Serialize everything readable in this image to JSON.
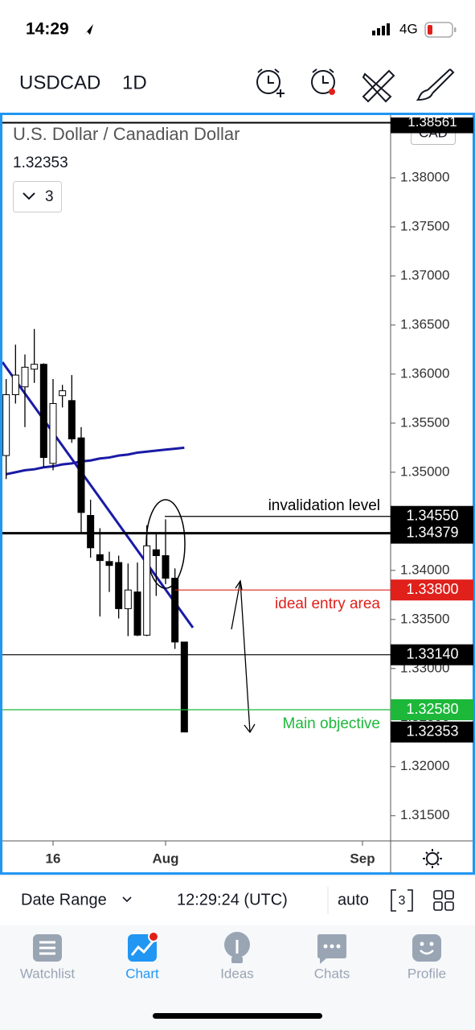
{
  "status_bar": {
    "time": "14:29",
    "network": "4G"
  },
  "header": {
    "symbol": "USDCAD",
    "interval": "1D"
  },
  "chart_data": {
    "type": "candlestick",
    "title": "U.S. Dollar / Canadian Dollar",
    "last_price": {
      "value": 1.32353,
      "label": "1.32353"
    },
    "indicators_count": 3,
    "currency": "CAD",
    "x": [
      0,
      1,
      2,
      3,
      4,
      5,
      6,
      7,
      8,
      9,
      10,
      11,
      12,
      13,
      14,
      15,
      16,
      17,
      18,
      19
    ],
    "open": [
      1.3517,
      1.3579,
      1.3587,
      1.3605,
      1.361,
      1.3509,
      1.3578,
      1.3573,
      1.3535,
      1.3456,
      1.3416,
      1.3409,
      1.3408,
      1.3361,
      1.3378,
      1.3334,
      1.3421,
      1.3415,
      1.3392,
      1.3327
    ],
    "high": [
      1.3595,
      1.363,
      1.362,
      1.3646,
      1.3611,
      1.3595,
      1.3589,
      1.3599,
      1.3546,
      1.3472,
      1.3443,
      1.3419,
      1.3415,
      1.3407,
      1.3408,
      1.3446,
      1.3439,
      1.3452,
      1.3402,
      1.3327
    ],
    "low": [
      1.3493,
      1.357,
      1.3546,
      1.3591,
      1.3505,
      1.3502,
      1.3566,
      1.353,
      1.3439,
      1.3413,
      1.3353,
      1.3378,
      1.3351,
      1.3333,
      1.3333,
      1.3333,
      1.3374,
      1.3386,
      1.332,
      1.32353
    ],
    "close": [
      1.3579,
      1.3599,
      1.3607,
      1.361,
      1.3515,
      1.357,
      1.3583,
      1.3534,
      1.3459,
      1.3423,
      1.341,
      1.3405,
      1.3361,
      1.338,
      1.3334,
      1.3425,
      1.3415,
      1.3392,
      1.3327,
      1.32353
    ],
    "up_color": "#ffffff",
    "down_color": "#000000",
    "moving_average": {
      "color": "#1a1aa6",
      "values": [
        1.3498,
        1.35,
        1.3502,
        1.3503,
        1.3505,
        1.3506,
        1.3508,
        1.3509,
        1.3511,
        1.3512,
        1.3514,
        1.3515,
        1.3517,
        1.3518,
        1.352,
        1.3521,
        1.3522,
        1.3523,
        1.3524,
        1.3525
      ]
    },
    "xlim": [
      -0.4,
      41
    ],
    "xticks": [
      {
        "value": 5,
        "label": "16"
      },
      {
        "value": 17,
        "label": "Aug"
      },
      {
        "value": 38,
        "label": "Sep"
      }
    ],
    "ylim": [
      1.3126,
      1.3859
    ],
    "yticks": [
      {
        "value": 1.38,
        "label": "1.38000"
      },
      {
        "value": 1.375,
        "label": "1.37500"
      },
      {
        "value": 1.37,
        "label": "1.37000"
      },
      {
        "value": 1.365,
        "label": "1.36500"
      },
      {
        "value": 1.36,
        "label": "1.36000"
      },
      {
        "value": 1.355,
        "label": "1.35500"
      },
      {
        "value": 1.35,
        "label": "1.35000"
      },
      {
        "value": 1.345,
        "label": "1.34500"
      },
      {
        "value": 1.34,
        "label": "1.34000"
      },
      {
        "value": 1.335,
        "label": "1.33500"
      },
      {
        "value": 1.33,
        "label": "1.33000"
      },
      {
        "value": 1.325,
        "label": "1.32500"
      },
      {
        "value": 1.32,
        "label": "1.32000"
      },
      {
        "value": 1.315,
        "label": "1.31500"
      }
    ],
    "top_label": {
      "value": 1.38561,
      "label": "1.38561"
    },
    "levels": [
      {
        "value": 1.3455,
        "label": "1.34550",
        "color": "#000000",
        "note": "invalidation level"
      },
      {
        "value": 1.34379,
        "label": "1.34379",
        "color": "#000000"
      },
      {
        "value": 1.338,
        "label": "1.33800",
        "color": "#e0201b",
        "note": "ideal entry area"
      },
      {
        "value": 1.3314,
        "label": "1.33140",
        "color": "#000000"
      },
      {
        "value": 1.3258,
        "label": "1.32580",
        "color": "#1db83a",
        "note": "Main objective"
      }
    ]
  },
  "toolbar": {
    "date_range": "Date Range",
    "time": "12:29:24 (UTC)",
    "scale": "auto",
    "layout_count": "3"
  },
  "tabs": [
    {
      "label": "Watchlist"
    },
    {
      "label": "Chart"
    },
    {
      "label": "Ideas"
    },
    {
      "label": "Chats"
    },
    {
      "label": "Profile"
    }
  ]
}
